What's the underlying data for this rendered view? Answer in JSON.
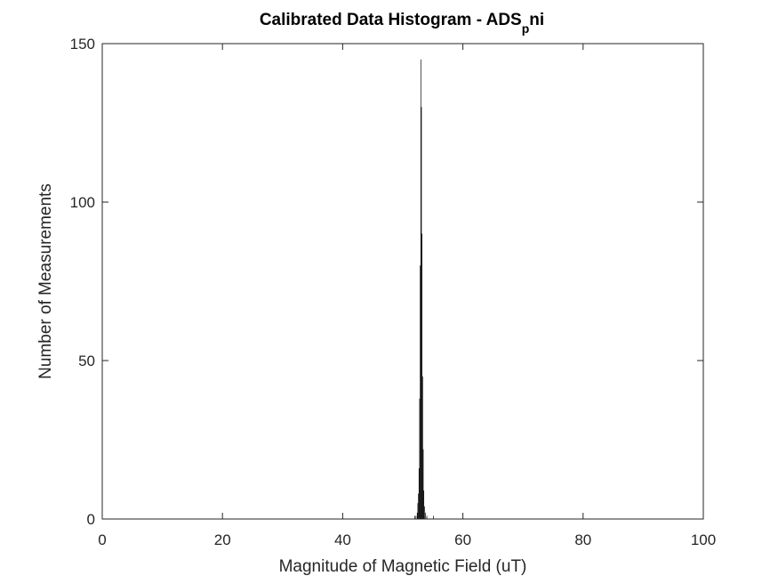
{
  "chart_data": {
    "type": "bar",
    "title": {
      "main": "Calibrated Data Histogram - ADS",
      "subscript": "p",
      "suffix": "ni"
    },
    "xlabel": "Magnitude of Magnetic Field (uT)",
    "ylabel": "Number of Measurements",
    "xlim": [
      0,
      100
    ],
    "ylim": [
      0,
      150
    ],
    "xticks": [
      0,
      20,
      40,
      60,
      80,
      100
    ],
    "yticks": [
      0,
      50,
      100,
      150
    ],
    "bar_color": "#000000",
    "grid": false,
    "bins": [
      {
        "x": 52.0,
        "count": 1
      },
      {
        "x": 52.2,
        "count": 1
      },
      {
        "x": 52.4,
        "count": 2
      },
      {
        "x": 52.5,
        "count": 5
      },
      {
        "x": 52.6,
        "count": 8
      },
      {
        "x": 52.7,
        "count": 16
      },
      {
        "x": 52.8,
        "count": 38
      },
      {
        "x": 52.9,
        "count": 80
      },
      {
        "x": 53.0,
        "count": 145
      },
      {
        "x": 53.1,
        "count": 130
      },
      {
        "x": 53.2,
        "count": 90
      },
      {
        "x": 53.3,
        "count": 45
      },
      {
        "x": 53.4,
        "count": 22
      },
      {
        "x": 53.5,
        "count": 9
      },
      {
        "x": 53.6,
        "count": 4
      },
      {
        "x": 53.8,
        "count": 2
      },
      {
        "x": 54.0,
        "count": 1
      },
      {
        "x": 55.1,
        "count": 1
      }
    ]
  }
}
